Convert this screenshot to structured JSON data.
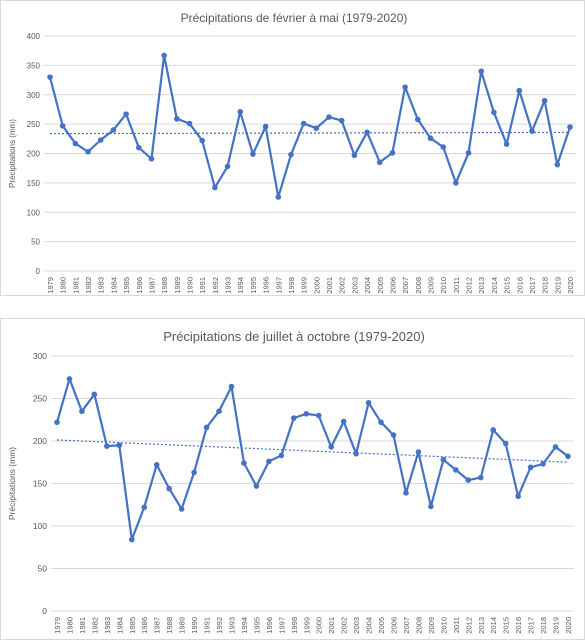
{
  "chart_data": [
    {
      "type": "line",
      "title": "Précipitations de février à mai (1979-2020)",
      "xlabel": "",
      "ylabel": "Précipitations (mm)",
      "ylim": [
        0,
        400
      ],
      "yticks": [
        0,
        50,
        100,
        150,
        200,
        250,
        300,
        350,
        400
      ],
      "grid": true,
      "trendline": true,
      "x": [
        "1979",
        "1980",
        "1981",
        "1982",
        "1983",
        "1984",
        "1985",
        "1986",
        "1987",
        "1988",
        "1989",
        "1990",
        "1991",
        "1992",
        "1993",
        "1994",
        "1995",
        "1996",
        "1997",
        "1998",
        "1999",
        "2000",
        "2001",
        "2002",
        "2003",
        "2004",
        "2005",
        "2006",
        "2007",
        "2008",
        "2009",
        "2010",
        "2011",
        "2012",
        "2013",
        "2014",
        "2015",
        "2016",
        "2017",
        "2018",
        "2019",
        "2020"
      ],
      "series": [
        {
          "color": "#4472c4",
          "values": [
            330,
            247,
            217,
            203,
            223,
            240,
            267,
            210,
            191,
            367,
            259,
            251,
            222,
            142,
            178,
            271,
            199,
            246,
            126,
            198,
            251,
            243,
            262,
            256,
            197,
            236,
            185,
            201,
            313,
            258,
            226,
            211,
            150,
            201,
            340,
            270,
            216,
            307,
            238,
            290,
            181,
            245
          ]
        }
      ]
    },
    {
      "type": "line",
      "title": "Précipitations de juillet à octobre (1979-2020)",
      "xlabel": "",
      "ylabel": "Précipitations (mm)",
      "ylim": [
        0,
        300
      ],
      "yticks": [
        0,
        50,
        100,
        150,
        200,
        250,
        300
      ],
      "grid": true,
      "trendline": true,
      "x": [
        "1979",
        "1980",
        "1981",
        "1982",
        "1983",
        "1984",
        "1985",
        "1986",
        "1987",
        "1988",
        "1989",
        "1990",
        "1991",
        "1992",
        "1993",
        "1994",
        "1995",
        "1996",
        "1997",
        "1998",
        "1999",
        "2000",
        "2001",
        "2002",
        "2003",
        "2004",
        "2005",
        "2006",
        "2007",
        "2008",
        "2009",
        "2010",
        "2011",
        "2012",
        "2013",
        "2014",
        "2015",
        "2016",
        "2017",
        "2018",
        "2019",
        "2020"
      ],
      "series": [
        {
          "color": "#4472c4",
          "values": [
            222,
            273,
            235,
            255,
            194,
            195,
            84,
            122,
            172,
            144,
            120,
            163,
            216,
            235,
            264,
            174,
            147,
            176,
            183,
            227,
            232,
            230,
            193,
            223,
            185,
            245,
            222,
            207,
            139,
            187,
            123,
            178,
            166,
            154,
            157,
            213,
            197,
            135,
            169,
            173,
            193,
            182
          ]
        }
      ]
    }
  ]
}
